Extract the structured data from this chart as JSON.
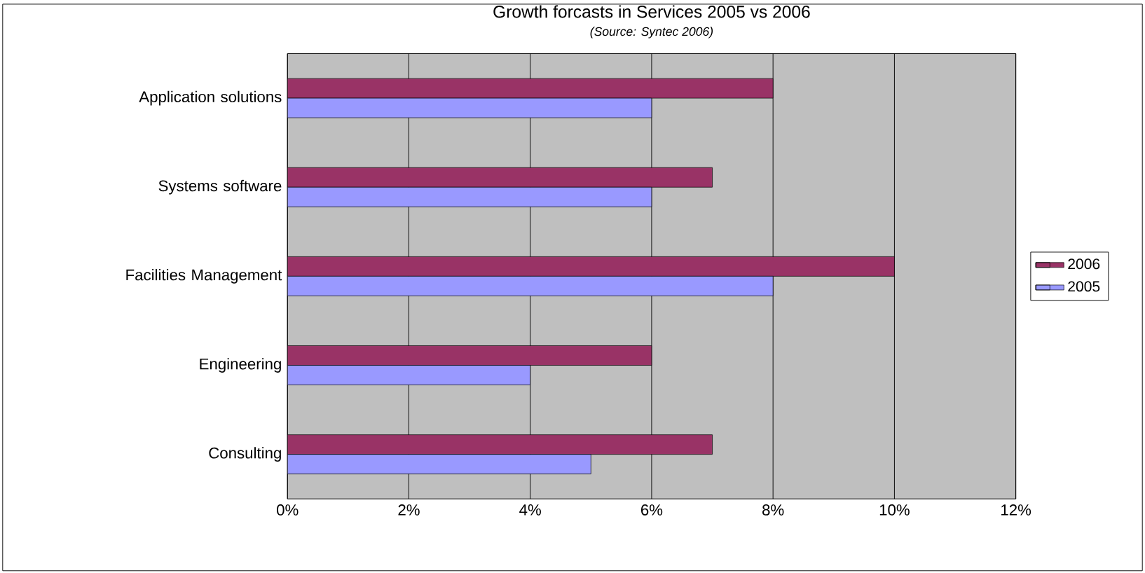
{
  "chart_data": {
    "type": "bar",
    "orientation": "horizontal",
    "title": "Growth forcasts in Services 2005 vs 2006",
    "subtitle": "(Source: Syntec 2006)",
    "categories": [
      "Application solutions",
      "Systems software",
      "Facilities Management",
      "Engineering",
      "Consulting"
    ],
    "series": [
      {
        "name": "2006",
        "color": "#993366",
        "values": [
          8,
          7,
          10,
          6,
          7
        ]
      },
      {
        "name": "2005",
        "color": "#9999ff",
        "values": [
          6,
          6,
          8,
          4,
          5
        ]
      }
    ],
    "xlim": [
      0,
      12
    ],
    "xticks": [
      {
        "value": 0,
        "label": "0%"
      },
      {
        "value": 2,
        "label": "2%"
      },
      {
        "value": 4,
        "label": "4%"
      },
      {
        "value": 6,
        "label": "6%"
      },
      {
        "value": 8,
        "label": "8%"
      },
      {
        "value": 10,
        "label": "10%"
      },
      {
        "value": 12,
        "label": "12%"
      }
    ],
    "grid": "x",
    "legend": "right"
  }
}
